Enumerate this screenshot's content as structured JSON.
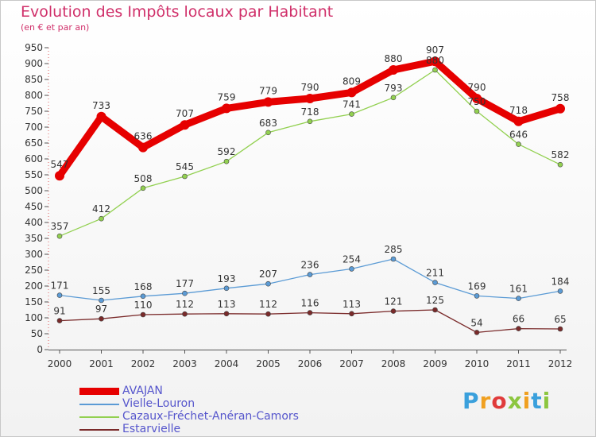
{
  "page": {
    "title": "Evolution des Impôts locaux par Habitant",
    "subtitle": "(en € et par an)"
  },
  "logo": {
    "text": "Proxiti",
    "letters": [
      {
        "ch": "P",
        "color": "#3aa0dc"
      },
      {
        "ch": "r",
        "color": "#f0a020"
      },
      {
        "ch": "o",
        "color": "#e03b3b"
      },
      {
        "ch": "x",
        "color": "#8cc63f"
      },
      {
        "ch": "i",
        "color": "#f0a020"
      },
      {
        "ch": "t",
        "color": "#3aa0dc"
      },
      {
        "ch": "i",
        "color": "#8cc63f"
      }
    ]
  },
  "chart_data": {
    "type": "line",
    "x": [
      "2000",
      "2001",
      "2002",
      "2003",
      "2004",
      "2005",
      "2006",
      "2007",
      "2008",
      "2009",
      "2010",
      "2011",
      "2012"
    ],
    "ylim": [
      0,
      950
    ],
    "yticks": [
      0,
      50,
      100,
      150,
      200,
      250,
      300,
      350,
      400,
      450,
      500,
      550,
      600,
      650,
      700,
      750,
      800,
      850,
      900,
      950
    ],
    "grid": false,
    "legend_position": "bottom-left",
    "series": [
      {
        "name": "AVAJAN",
        "color": "#e60000",
        "width": 9,
        "marker": 6,
        "values": [
          547,
          733,
          636,
          707,
          759,
          779,
          790,
          809,
          880,
          907,
          790,
          718,
          758
        ]
      },
      {
        "name": "Vielle-Louron",
        "color": "#5b9bd5",
        "width": 1.3,
        "marker": 3,
        "values": [
          171,
          155,
          168,
          177,
          193,
          207,
          236,
          254,
          285,
          211,
          169,
          161,
          184
        ]
      },
      {
        "name": "Cazaux-Fréchet-Anéran-Camors",
        "color": "#92d050",
        "width": 1.3,
        "marker": 3,
        "values": [
          357,
          412,
          508,
          545,
          592,
          683,
          718,
          741,
          793,
          880,
          750,
          646,
          582
        ]
      },
      {
        "name": "Estarvielle",
        "color": "#7a2a2a",
        "width": 1.3,
        "marker": 3,
        "values": [
          91,
          97,
          110,
          112,
          113,
          112,
          116,
          113,
          121,
          125,
          54,
          66,
          65
        ]
      }
    ]
  }
}
